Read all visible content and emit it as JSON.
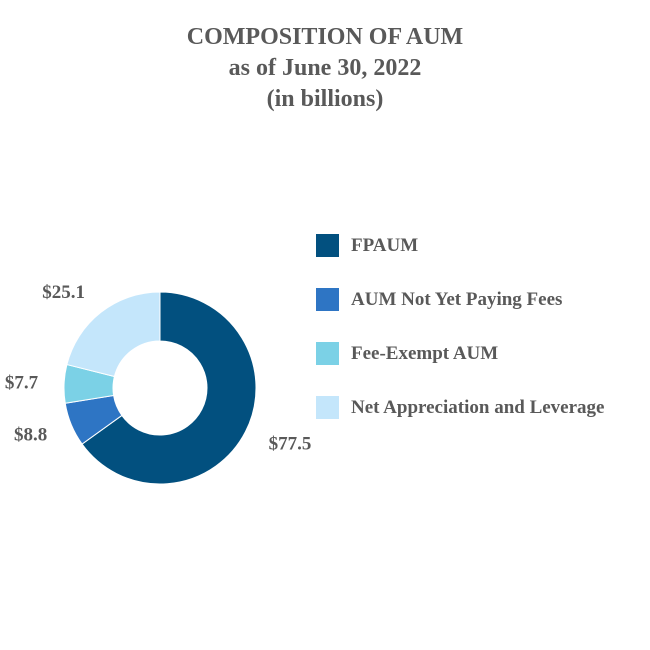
{
  "chart_data": {
    "type": "pie",
    "style": "donut",
    "title": "COMPOSITION OF AUM",
    "subtitle": "as of June 30, 2022",
    "units_note": "(in billions)",
    "legend_position": "right",
    "slices": [
      {
        "name": "FPAUM",
        "value": 77.5,
        "label": "$77.5",
        "color": "#02507F"
      },
      {
        "name": "AUM Not Yet Paying Fees",
        "value": 8.8,
        "label": "$8.8",
        "color": "#2E75C4"
      },
      {
        "name": "Fee-Exempt AUM",
        "value": 7.7,
        "label": "$7.7",
        "color": "#7BD1E6"
      },
      {
        "name": "Net Appreciation and Leverage",
        "value": 25.1,
        "label": "$25.1",
        "color": "#C4E6FB"
      }
    ]
  }
}
